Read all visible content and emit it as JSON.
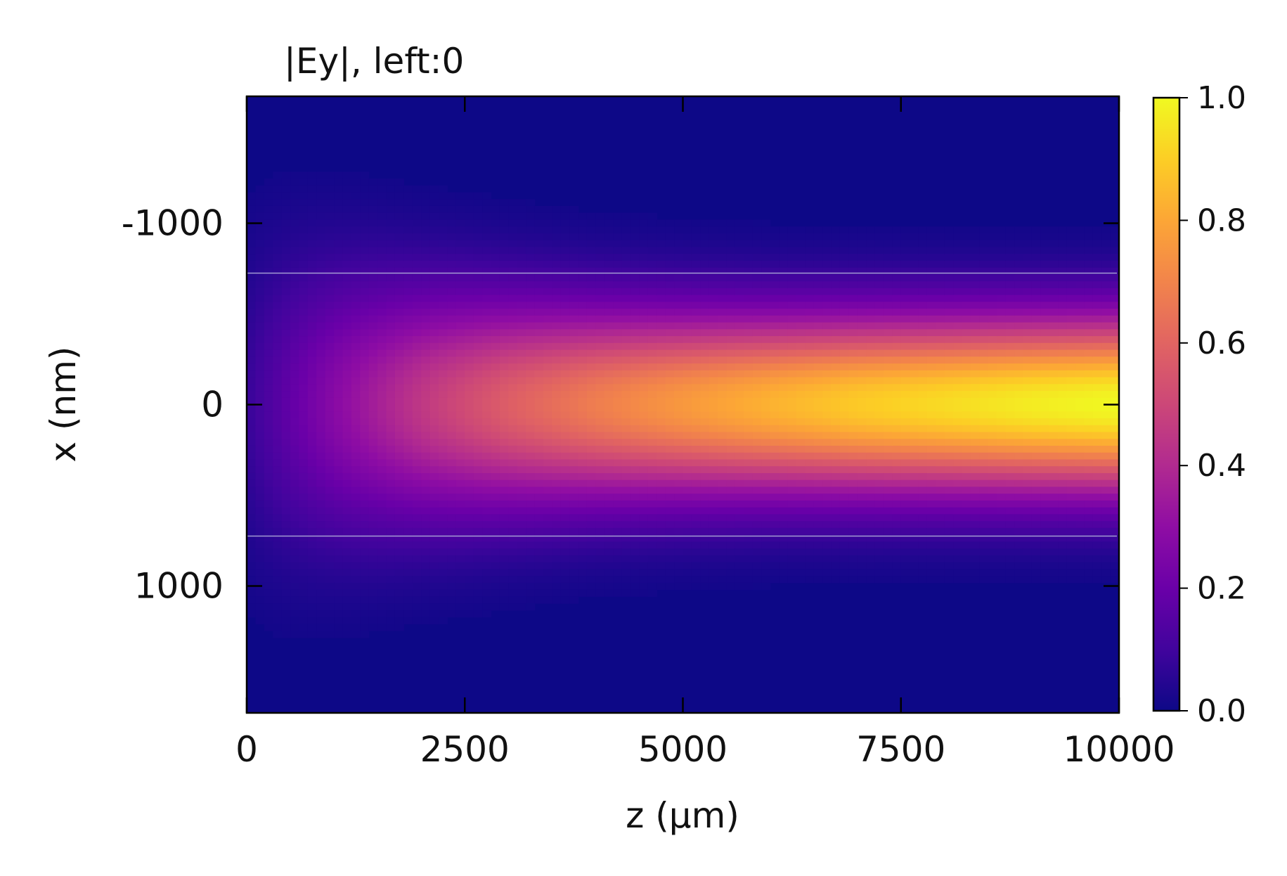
{
  "chart_data": {
    "type": "heatmap",
    "title": "|Ey|, left:0",
    "xlabel": "z (µm)",
    "ylabel": "x (nm)",
    "xlim": [
      0,
      10000
    ],
    "ylim": [
      -1700,
      1700
    ],
    "y_inverted": true,
    "xticks": [
      {
        "value": 0,
        "label": "0"
      },
      {
        "value": 2500,
        "label": "2500"
      },
      {
        "value": 5000,
        "label": "5000"
      },
      {
        "value": 7500,
        "label": "7500"
      },
      {
        "value": 10000,
        "label": "10000"
      }
    ],
    "yticks": [
      {
        "value": -1000,
        "label": "-1000"
      },
      {
        "value": 0,
        "label": "0"
      },
      {
        "value": 1000,
        "label": "1000"
      }
    ],
    "colorbar": {
      "colormap": "plasma",
      "range": [
        0.0,
        1.0
      ],
      "ticks": [
        {
          "value": 0.0,
          "label": "0.0"
        },
        {
          "value": 0.2,
          "label": "0.2"
        },
        {
          "value": 0.4,
          "label": "0.4"
        },
        {
          "value": 0.6,
          "label": "0.6"
        },
        {
          "value": 0.8,
          "label": "0.8"
        },
        {
          "value": 1.0,
          "label": "1.0"
        }
      ]
    },
    "boundary_lines": [
      {
        "x_nm": -725,
        "color": "#b9b6e0"
      },
      {
        "x_nm": 725,
        "color": "#b9b6e0"
      }
    ],
    "field_profile": {
      "z_um": [
        0,
        1000,
        2000,
        3000,
        4000,
        5000,
        6000,
        7000,
        8000,
        9000,
        10000
      ],
      "peak_Ey_at_x0": [
        0.08,
        0.28,
        0.45,
        0.58,
        0.68,
        0.76,
        0.83,
        0.89,
        0.93,
        0.97,
        1.0
      ],
      "gaussian_width_nm": [
        950,
        820,
        720,
        650,
        600,
        570,
        550,
        540,
        535,
        532,
        530
      ]
    }
  }
}
